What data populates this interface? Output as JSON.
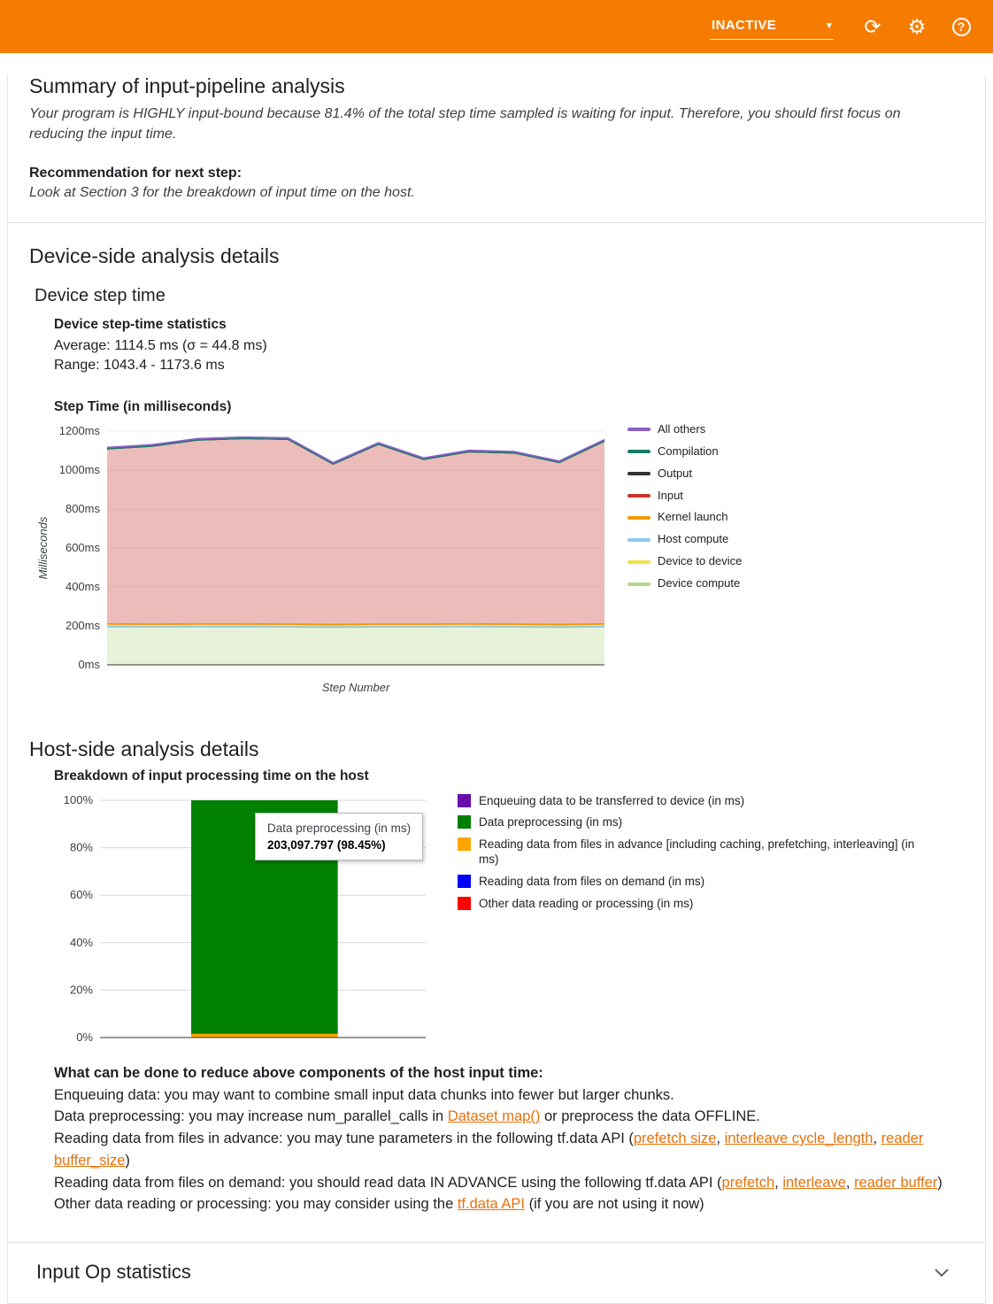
{
  "accent_color": "#f57c00",
  "link_color": "#e8710a",
  "header": {
    "status": {
      "value": "INACTIVE"
    },
    "icons": {
      "refresh": "refresh-icon",
      "settings": "settings-icon",
      "help": "help-icon"
    }
  },
  "summary": {
    "title": "Summary of input-pipeline analysis",
    "body": "Your program is HIGHLY input-bound because 81.4% of the total step time sampled is waiting for input. Therefore, you should first focus on reducing the input time.",
    "recommendation_label": "Recommendation for next step:",
    "recommendation": "Look at Section 3 for the breakdown of input time on the host."
  },
  "device_section": {
    "title": "Device-side analysis details",
    "subtitle": "Device step time",
    "stats_title": "Device step-time statistics",
    "average_line": "Average: 1114.5 ms (σ = 44.8 ms)",
    "range_line": "Range: 1043.4 - 1173.6 ms"
  },
  "host_section": {
    "title": "Host-side analysis details",
    "chart_title": "Breakdown of input processing time on the host",
    "tips_title": "What can be done to reduce above components of the host input time:",
    "tips": {
      "items": [
        [
          {
            "t": "Enqueuing data: you may want to combine small input data chunks into fewer but larger chunks."
          }
        ],
        [
          {
            "t": "Data preprocessing: you may increase num_parallel_calls in "
          },
          {
            "t": "Dataset map()",
            "link": true
          },
          {
            "t": " or preprocess the data OFFLINE."
          }
        ],
        [
          {
            "t": "Reading data from files in advance: you may tune parameters in the following tf.data API ("
          },
          {
            "t": "prefetch size",
            "link": true
          },
          {
            "t": ", "
          },
          {
            "t": "interleave cycle_length",
            "link": true
          },
          {
            "t": ", "
          },
          {
            "t": "reader buffer_size",
            "link": true
          },
          {
            "t": ")"
          }
        ],
        [
          {
            "t": "Reading data from files on demand: you should read data IN ADVANCE using the following tf.data API ("
          },
          {
            "t": "prefetch",
            "link": true
          },
          {
            "t": ", "
          },
          {
            "t": "interleave",
            "link": true
          },
          {
            "t": ", "
          },
          {
            "t": "reader buffer",
            "link": true
          },
          {
            "t": ")"
          }
        ],
        [
          {
            "t": "Other data reading or processing: you may consider using the "
          },
          {
            "t": "tf.data API",
            "link": true
          },
          {
            "t": " (if you are not using it now)"
          }
        ]
      ]
    }
  },
  "footer": {
    "input_op_title": "Input Op statistics"
  },
  "chart_data": [
    {
      "type": "area",
      "stacked": true,
      "title": "Step Time (in milliseconds)",
      "xlabel": "Step Number",
      "ylabel": "Milliseconds",
      "ylim": [
        0,
        1200
      ],
      "y_ticks": [
        0,
        200,
        400,
        600,
        800,
        1000,
        1200
      ],
      "y_tick_suffix": "ms",
      "legend_position": "right",
      "grid": false,
      "x": [
        1,
        2,
        3,
        4,
        5,
        6,
        7,
        8,
        9,
        10,
        11,
        12
      ],
      "series": [
        {
          "name": "Device compute",
          "color": "#b5d78c",
          "values": [
            196,
            195,
            196,
            196,
            195,
            194,
            195,
            195,
            196,
            195,
            194,
            196
          ]
        },
        {
          "name": "Device to device",
          "color": "#f2e049",
          "values": [
            0,
            0,
            0,
            0,
            0,
            0,
            0,
            0,
            0,
            0,
            0,
            0
          ]
        },
        {
          "name": "Host compute",
          "color": "#8ec9f2",
          "values": [
            0,
            0,
            0,
            0,
            0,
            0,
            0,
            0,
            0,
            0,
            0,
            0
          ]
        },
        {
          "name": "Kernel launch",
          "color": "#f29900",
          "values": [
            14,
            14,
            14,
            14,
            14,
            13,
            14,
            14,
            14,
            14,
            13,
            14
          ]
        },
        {
          "name": "Input",
          "color": "#c5352e",
          "values": [
            900,
            915,
            945,
            953,
            950,
            825,
            925,
            847,
            885,
            880,
            833,
            940
          ]
        },
        {
          "name": "Output",
          "color": "#333333",
          "values": [
            0,
            0,
            0,
            0,
            0,
            0,
            0,
            0,
            0,
            0,
            0,
            0
          ]
        },
        {
          "name": "Compilation",
          "color": "#177c68",
          "values": [
            0,
            0,
            0,
            0,
            0,
            0,
            0,
            0,
            0,
            0,
            0,
            0
          ]
        },
        {
          "name": "All others",
          "color": "#8a5fc9",
          "values": [
            6,
            6,
            6,
            6,
            6,
            6,
            6,
            6,
            6,
            6,
            6,
            6
          ]
        }
      ]
    },
    {
      "type": "bar",
      "stacked_percent": true,
      "ylim": [
        0,
        100
      ],
      "y_ticks": [
        0,
        20,
        40,
        60,
        80,
        100
      ],
      "grid": true,
      "legend_position": "right",
      "segments": [
        {
          "name": "Other data reading or processing (in ms)",
          "color": "#ff0000",
          "pct": 0.12
        },
        {
          "name": "Reading data from files on demand (in ms)",
          "color": "#0000ff",
          "pct": 0.03
        },
        {
          "name": "Reading data from files in advance [including caching, prefetching, interleaving] (in ms)",
          "color": "#ffa500",
          "pct": 1.4
        },
        {
          "name": "Data preprocessing (in ms)",
          "color": "#008000",
          "pct": 98.45
        },
        {
          "name": "Enqueuing data to be transferred to device (in ms)",
          "color": "#6a0dad",
          "pct": 0.0
        }
      ],
      "tooltip": {
        "title": "Data preprocessing (in ms)",
        "value": "203,097.797 (98.45%)"
      }
    }
  ]
}
